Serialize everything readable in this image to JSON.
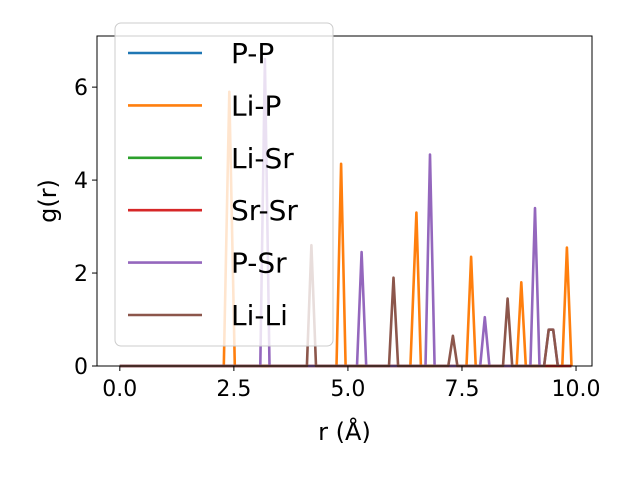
{
  "chart_data": {
    "type": "line",
    "xlabel": "r (Å)",
    "ylabel": "g(r)",
    "xlim": [
      -0.5,
      10.35
    ],
    "ylim": [
      0,
      7.1
    ],
    "xticks": [
      0.0,
      2.5,
      5.0,
      7.5,
      10.0
    ],
    "xtick_labels": [
      "0.0",
      "2.5",
      "5.0",
      "7.5",
      "10.0"
    ],
    "yticks": [
      0,
      2,
      4,
      6
    ],
    "ytick_labels": [
      "0",
      "2",
      "4",
      "6"
    ],
    "grid": false,
    "legend_position": "upper-left",
    "series": [
      {
        "name": "P-P",
        "color": "#1f77b4",
        "x": [
          0.0,
          9.9
        ],
        "y": [
          0,
          0
        ]
      },
      {
        "name": "Li-P",
        "color": "#ff7f0e",
        "x": [
          0.0,
          2.28,
          2.4,
          2.52,
          4.75,
          4.85,
          4.95,
          6.37,
          6.5,
          6.6,
          7.6,
          7.7,
          7.8,
          8.7,
          8.8,
          8.9,
          9.7,
          9.8,
          9.9
        ],
        "y": [
          0,
          0,
          5.9,
          0,
          0,
          4.35,
          0,
          0,
          3.3,
          0,
          0,
          2.35,
          0,
          0,
          1.8,
          0,
          0,
          2.55,
          0
        ]
      },
      {
        "name": "Li-Sr",
        "color": "#2ca02c",
        "x": [
          0.0,
          9.9
        ],
        "y": [
          0,
          0
        ]
      },
      {
        "name": "Sr-Sr",
        "color": "#d62728",
        "x": [
          0.0,
          9.9
        ],
        "y": [
          0,
          0
        ]
      },
      {
        "name": "P-Sr",
        "color": "#9467bd",
        "x": [
          0.0,
          3.08,
          3.18,
          3.28,
          5.2,
          5.3,
          5.4,
          6.7,
          6.8,
          6.9,
          7.9,
          8.0,
          8.1,
          9.0,
          9.1,
          9.2,
          9.3,
          9.4,
          9.5,
          9.6
        ],
        "y": [
          0,
          0,
          6.6,
          0,
          0,
          2.45,
          0,
          0,
          4.55,
          0,
          0,
          1.05,
          0,
          0,
          3.4,
          0,
          0,
          0.78,
          0.78,
          0
        ]
      },
      {
        "name": "Li-Li",
        "color": "#8c564b",
        "x": [
          0.0,
          4.1,
          4.2,
          4.3,
          5.9,
          6.0,
          6.1,
          7.2,
          7.3,
          7.4,
          8.4,
          8.5,
          8.6,
          9.3,
          9.4,
          9.5,
          9.6
        ],
        "y": [
          0,
          0,
          2.6,
          0,
          0,
          1.9,
          0,
          0,
          0.65,
          0,
          0,
          1.45,
          0,
          0,
          0.78,
          0.78,
          0
        ]
      }
    ]
  }
}
